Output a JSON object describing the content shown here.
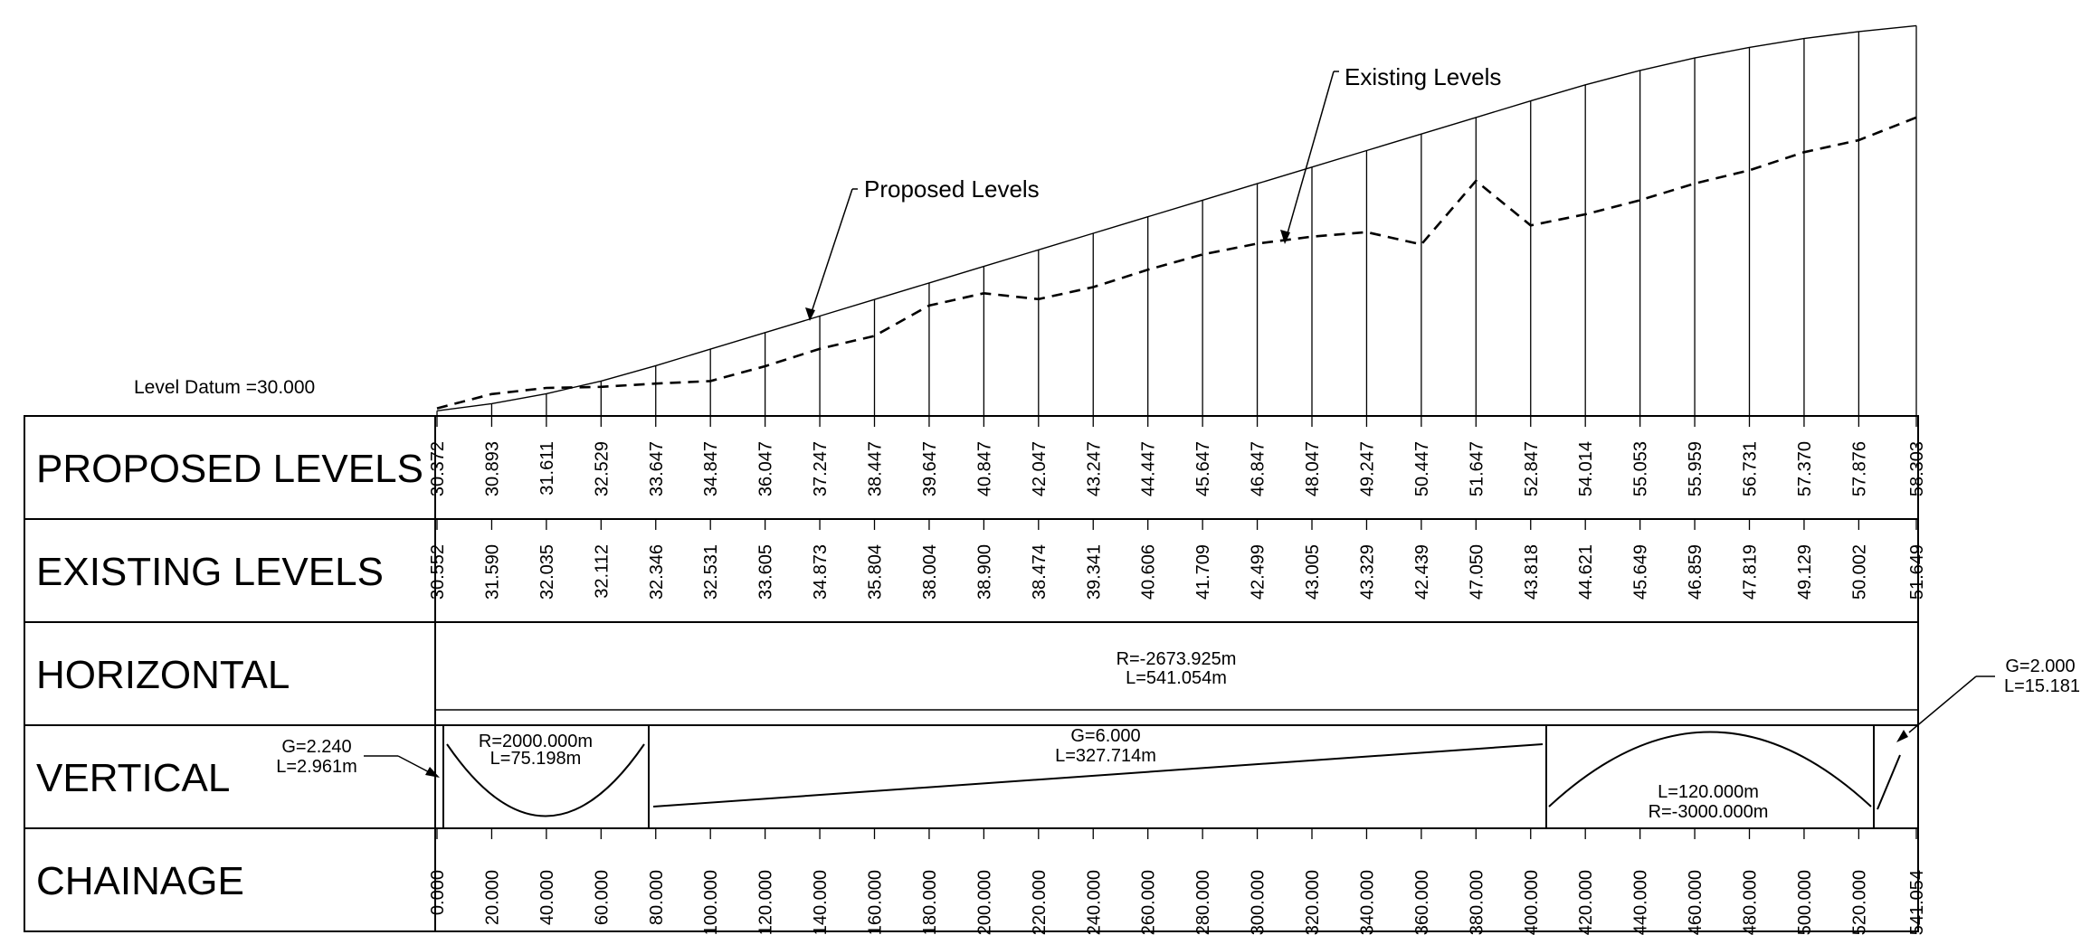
{
  "labels": {
    "datum": "Level Datum =30.000",
    "proposed_callout": "Proposed Levels",
    "existing_callout": "Existing Levels"
  },
  "rows": {
    "proposed": "PROPOSED LEVELS",
    "existing": "EXISTING LEVELS",
    "horizontal": "HORIZONTAL",
    "vertical": "VERTICAL",
    "chainage": "CHAINAGE"
  },
  "horizontal": {
    "r": "R=-2673.925m",
    "l": "L=541.054m"
  },
  "vertical": {
    "g1_g": "G=2.240",
    "g1_l": "L=2.961m",
    "c1_r": "R=2000.000m",
    "c1_l": "L=75.198m",
    "g2_g": "G=6.000",
    "g2_l": "L=327.714m",
    "c2_l": "L=120.000m",
    "c2_r": "R=-3000.000m",
    "g3_g": "G=2.000",
    "g3_l": "L=15.181"
  },
  "chart_data": {
    "type": "line",
    "datum": 30.0,
    "x": [
      0,
      20,
      40,
      60,
      80,
      100,
      120,
      140,
      160,
      180,
      200,
      220,
      240,
      260,
      280,
      300,
      320,
      340,
      360,
      380,
      400,
      420,
      440,
      460,
      480,
      500,
      520,
      541.054
    ],
    "chainage_labels": [
      "0.000",
      "20.000",
      "40.000",
      "60.000",
      "80.000",
      "100.000",
      "120.000",
      "140.000",
      "160.000",
      "180.000",
      "200.000",
      "220.000",
      "240.000",
      "260.000",
      "280.000",
      "300.000",
      "320.000",
      "340.000",
      "360.000",
      "380.000",
      "400.000",
      "420.000",
      "440.000",
      "460.000",
      "480.000",
      "500.000",
      "520.000",
      "541.054"
    ],
    "series": [
      {
        "name": "Proposed Levels",
        "style": "solid",
        "values": [
          "30.372",
          "30.893",
          "31.611",
          "32.529",
          "33.647",
          "34.847",
          "36.047",
          "37.247",
          "38.447",
          "39.647",
          "40.847",
          "42.047",
          "43.247",
          "44.447",
          "45.647",
          "46.847",
          "48.047",
          "49.247",
          "50.447",
          "51.647",
          "52.847",
          "54.014",
          "55.053",
          "55.959",
          "56.731",
          "57.370",
          "57.876",
          "58.303"
        ]
      },
      {
        "name": "Existing Levels",
        "style": "dashed",
        "values": [
          "30.552",
          "31.590",
          "32.035",
          "32.112",
          "32.346",
          "32.531",
          "33.605",
          "34.873",
          "35.804",
          "38.004",
          "38.900",
          "38.474",
          "39.341",
          "40.606",
          "41.709",
          "42.499",
          "43.005",
          "43.329",
          "42.439",
          "47.050",
          "43.818",
          "44.621",
          "45.649",
          "46.859",
          "47.819",
          "49.129",
          "50.002",
          "51.649"
        ]
      }
    ]
  }
}
